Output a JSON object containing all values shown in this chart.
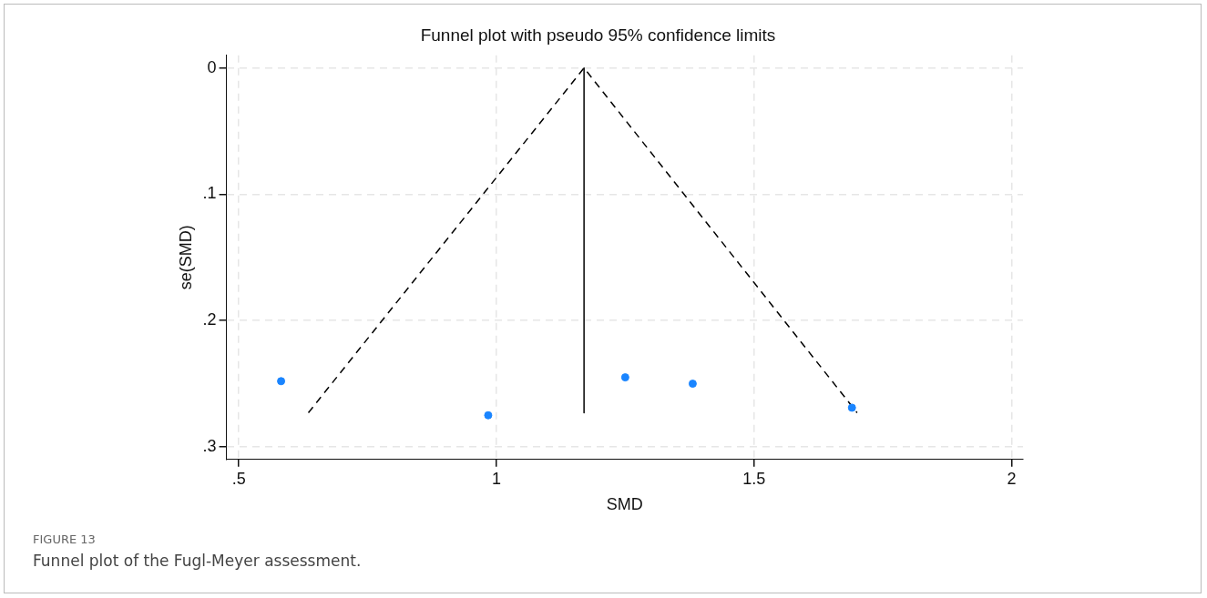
{
  "chart_data": {
    "type": "scatter",
    "title": "Funnel plot with pseudo 95% confidence limits",
    "xlabel": "SMD",
    "ylabel": "se(SMD)",
    "xlim": [
      0.476,
      2.022
    ],
    "xticks": [
      {
        "value": 0.5,
        "label": ".5"
      },
      1,
      1.5,
      2
    ],
    "ylim": [
      0.31,
      -0.01
    ],
    "yticks": [
      0,
      {
        "value": 0.1,
        "label": ".1"
      },
      {
        "value": 0.2,
        "label": ".2"
      },
      {
        "value": 0.3,
        "label": ".3"
      }
    ],
    "grid": true,
    "legend": false,
    "series": [
      {
        "type": "scatter",
        "color": "#1a85ff",
        "marker": "circle",
        "x": [
          0.582,
          0.984,
          1.25,
          1.381,
          1.69
        ],
        "values": [
          0.248,
          0.275,
          0.245,
          0.25,
          0.269
        ]
      },
      {
        "type": "line",
        "color": "#000000",
        "line_style": "dashed",
        "marker": "none",
        "x": [
          0.635,
          1.17,
          1.7
        ],
        "values": [
          0.273,
          0,
          0.273
        ]
      },
      {
        "type": "line",
        "color": "#000000",
        "line_style": "solid",
        "marker": "none",
        "x": [
          1.17,
          1.17
        ],
        "values": [
          0,
          0.273
        ]
      }
    ],
    "annotations": [
      "FIGURE 13",
      "Funnel plot of the Fugl-Meyer assessment."
    ]
  }
}
